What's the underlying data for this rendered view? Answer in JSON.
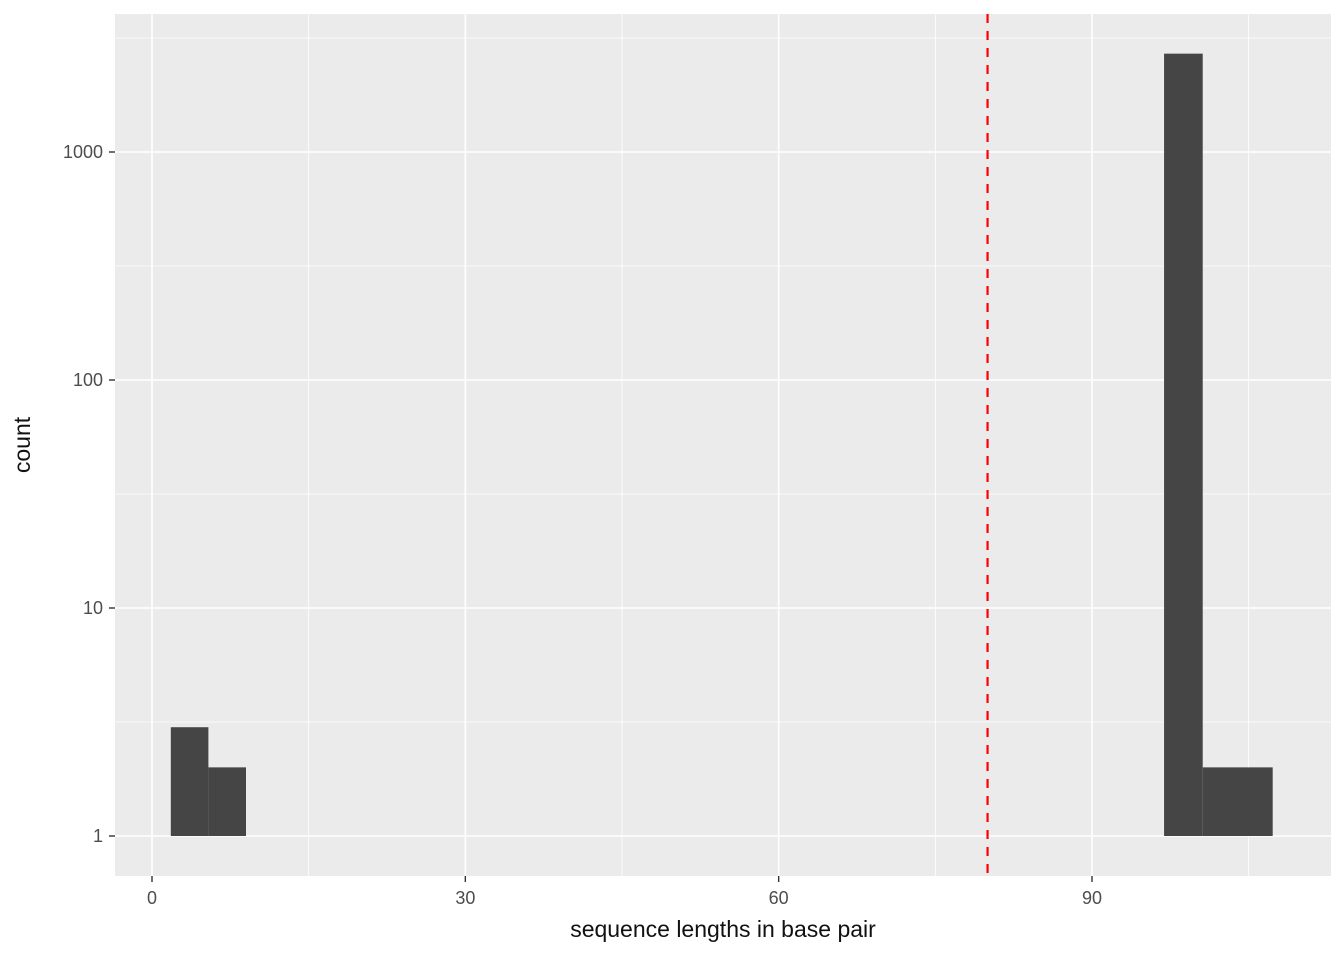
{
  "chart_data": {
    "type": "bar",
    "subtype": "histogram",
    "title": "",
    "xlabel": "sequence lengths in base pair",
    "ylabel": "count",
    "x_ticks": [
      0,
      30,
      60,
      90
    ],
    "y_ticks": [
      1,
      10,
      100,
      1000
    ],
    "y_scale": "log10",
    "x_range": [
      -3.5,
      112.8
    ],
    "y_range": [
      0.68,
      3980
    ],
    "baseline_count": 1,
    "bars": [
      {
        "x0": 1.8,
        "x1": 5.4,
        "count": 3
      },
      {
        "x0": 5.4,
        "x1": 9.0,
        "count": 2
      },
      {
        "x0": 96.9,
        "x1": 100.6,
        "count": 2700
      },
      {
        "x0": 100.6,
        "x1": 107.3,
        "count": 2
      }
    ],
    "vline": {
      "x": 80,
      "color": "#FF0000",
      "style": "dashed"
    },
    "colors": {
      "bar_fill": "#454545",
      "panel_bg": "#EBEBEB",
      "grid_major": "#FFFFFF",
      "grid_minor": "#FFFFFF",
      "tick_mark": "#333333",
      "tick_label": "#4D4D4D",
      "axis_title": "#111111"
    },
    "legend": null,
    "grid": "on"
  }
}
